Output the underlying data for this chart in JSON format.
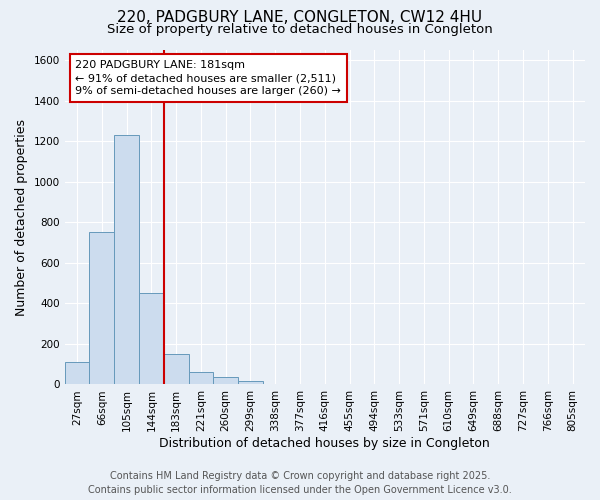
{
  "title_line1": "220, PADGBURY LANE, CONGLETON, CW12 4HU",
  "title_line2": "Size of property relative to detached houses in Congleton",
  "xlabel": "Distribution of detached houses by size in Congleton",
  "ylabel": "Number of detached properties",
  "categories": [
    "27sqm",
    "66sqm",
    "105sqm",
    "144sqm",
    "183sqm",
    "221sqm",
    "260sqm",
    "299sqm",
    "338sqm",
    "377sqm",
    "416sqm",
    "455sqm",
    "494sqm",
    "533sqm",
    "571sqm",
    "610sqm",
    "649sqm",
    "688sqm",
    "727sqm",
    "766sqm",
    "805sqm"
  ],
  "values": [
    110,
    750,
    1230,
    450,
    150,
    60,
    35,
    15,
    0,
    0,
    0,
    0,
    0,
    0,
    0,
    0,
    0,
    0,
    0,
    0,
    0
  ],
  "bar_color": "#ccdcee",
  "bar_edge_color": "#6699bb",
  "vline_x_index": 4,
  "vline_color": "#cc0000",
  "annotation_text": "220 PADGBURY LANE: 181sqm\n← 91% of detached houses are smaller (2,511)\n9% of semi-detached houses are larger (260) →",
  "annotation_box_color": "#cc0000",
  "annotation_bg": "white",
  "ylim": [
    0,
    1650
  ],
  "yticks": [
    0,
    200,
    400,
    600,
    800,
    1000,
    1200,
    1400,
    1600
  ],
  "background_color": "#eaf0f7",
  "grid_color": "white",
  "footer_line1": "Contains HM Land Registry data © Crown copyright and database right 2025.",
  "footer_line2": "Contains public sector information licensed under the Open Government Licence v3.0.",
  "title_fontsize": 11,
  "subtitle_fontsize": 9.5,
  "axis_label_fontsize": 9,
  "tick_fontsize": 7.5,
  "annotation_fontsize": 8,
  "footer_fontsize": 7
}
